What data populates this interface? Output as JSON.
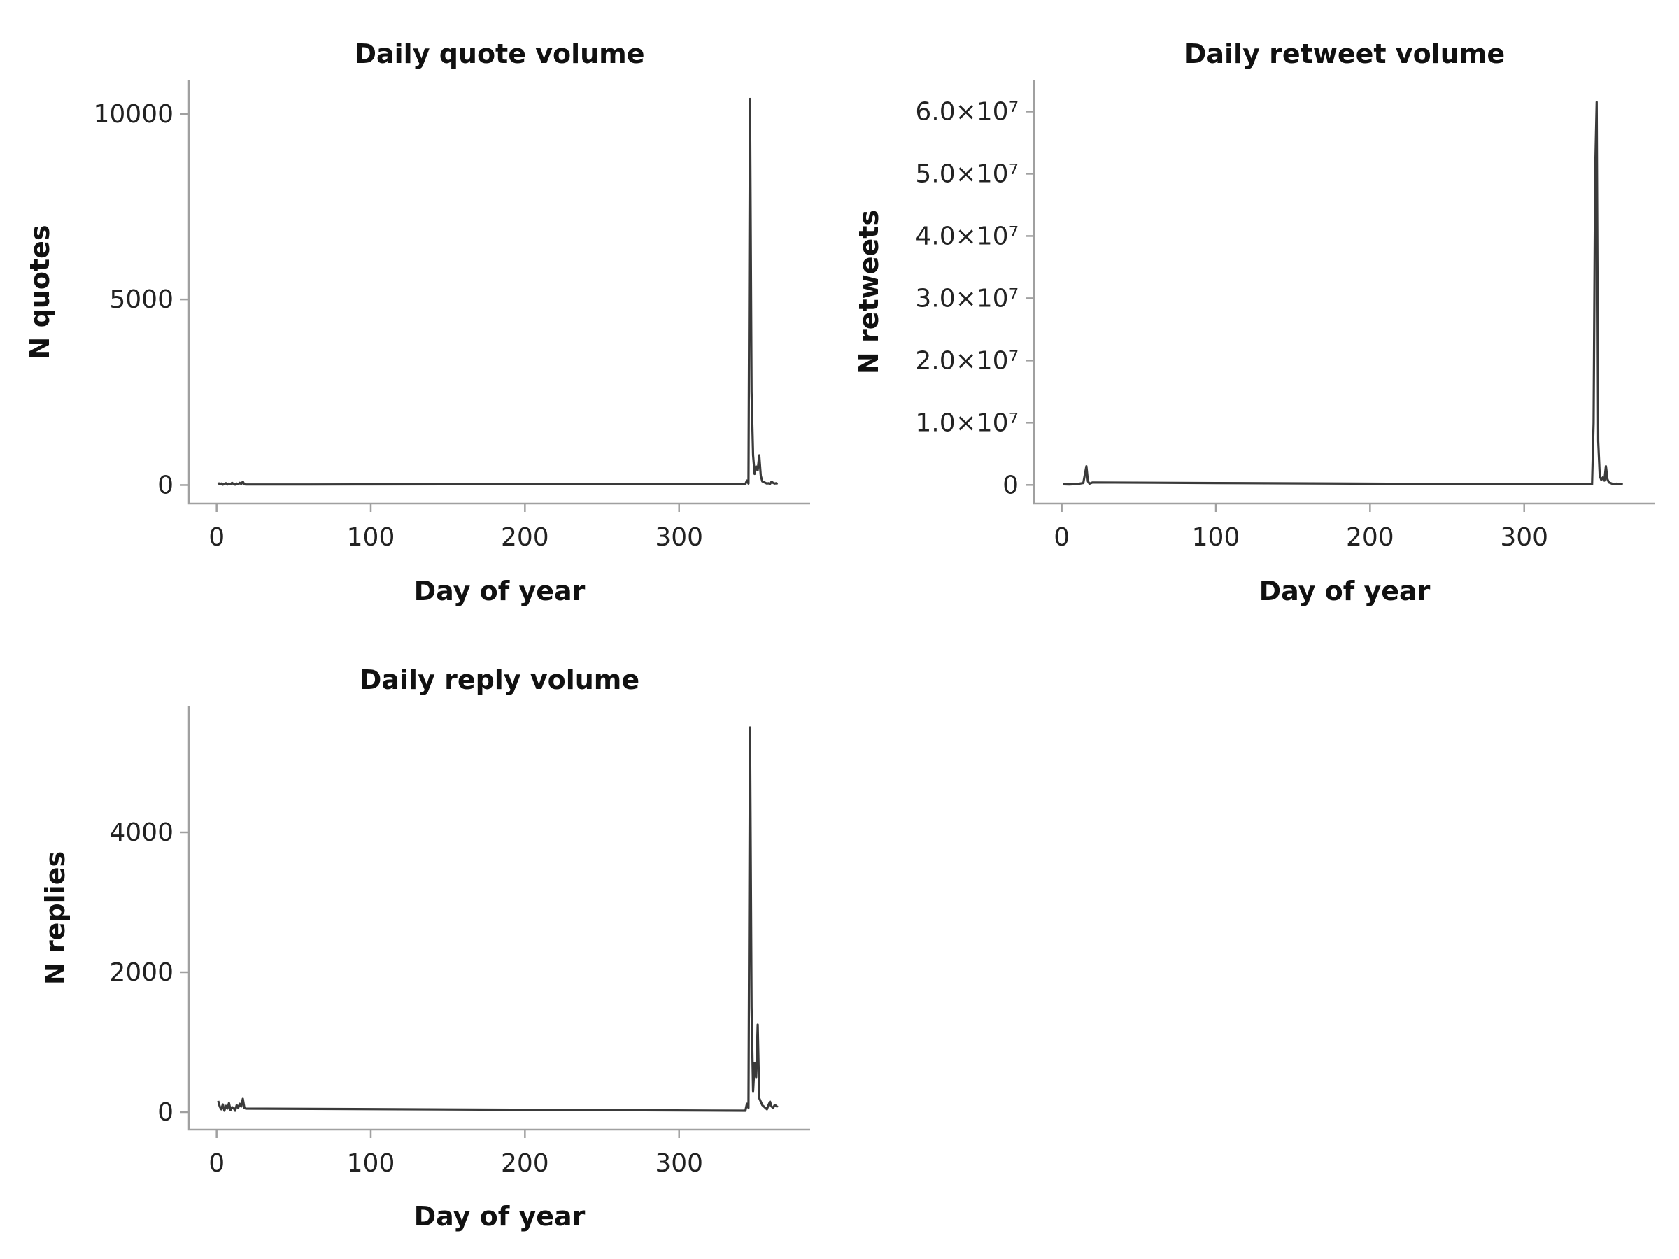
{
  "chart_data": [
    {
      "type": "line",
      "title": "Daily quote volume",
      "xlabel": "Day of year",
      "ylabel": "N quotes",
      "xlim": [
        -18,
        385
      ],
      "ylim": [
        -500,
        10900
      ],
      "x_ticks": [
        0,
        100,
        200,
        300
      ],
      "x_tick_labels": [
        "0",
        "100",
        "200",
        "300"
      ],
      "y_ticks": [
        0,
        5000,
        10000
      ],
      "y_tick_labels": [
        "0",
        "5000",
        "10000"
      ],
      "grid": false,
      "series": [
        {
          "color": "#3a3a3a",
          "x": [
            1,
            2,
            3,
            4,
            5,
            6,
            7,
            8,
            9,
            10,
            11,
            12,
            13,
            14,
            15,
            16,
            17,
            18,
            19,
            60,
            100,
            150,
            200,
            250,
            300,
            343,
            344,
            345,
            346,
            347,
            348,
            349,
            350,
            351,
            352,
            353,
            354,
            355,
            356,
            357,
            358,
            359,
            360,
            361,
            362,
            363,
            364
          ],
          "y": [
            60,
            20,
            40,
            10,
            30,
            50,
            15,
            40,
            20,
            60,
            30,
            10,
            40,
            20,
            60,
            30,
            90,
            20,
            15,
            15,
            18,
            20,
            20,
            22,
            25,
            30,
            120,
            40,
            10400,
            2500,
            800,
            300,
            500,
            400,
            800,
            250,
            100,
            80,
            60,
            40,
            50,
            30,
            90,
            60,
            40,
            50,
            30
          ]
        }
      ]
    },
    {
      "type": "line",
      "title": "Daily retweet volume",
      "xlabel": "Day of year",
      "ylabel": "N retweets",
      "xlim": [
        -18,
        385
      ],
      "ylim": [
        -3000000,
        65000000
      ],
      "x_ticks": [
        0,
        100,
        200,
        300
      ],
      "x_tick_labels": [
        "0",
        "100",
        "200",
        "300"
      ],
      "y_ticks": [
        0,
        10000000,
        20000000,
        30000000,
        40000000,
        50000000,
        60000000
      ],
      "y_tick_labels": [
        "0",
        "1.0×10⁷",
        "2.0×10⁷",
        "3.0×10⁷",
        "4.0×10⁷",
        "5.0×10⁷",
        "6.0×10⁷"
      ],
      "grid": false,
      "series": [
        {
          "color": "#3a3a3a",
          "x": [
            1,
            5,
            10,
            14,
            16,
            17,
            18,
            20,
            100,
            200,
            300,
            344,
            345,
            346,
            347,
            348,
            349,
            350,
            351,
            352,
            353,
            354,
            355,
            356,
            357,
            358,
            360,
            362,
            364
          ],
          "y": [
            100000,
            80000,
            150000,
            300000,
            3000000,
            600000,
            200000,
            400000,
            300000,
            200000,
            100000,
            100000,
            10000000,
            50000000,
            61500000,
            7000000,
            1500000,
            800000,
            1200000,
            700000,
            3000000,
            900000,
            400000,
            300000,
            200000,
            150000,
            200000,
            150000,
            100000
          ]
        }
      ]
    },
    {
      "type": "line",
      "title": "Daily reply volume",
      "xlabel": "Day of year",
      "ylabel": "N replies",
      "xlim": [
        -18,
        385
      ],
      "ylim": [
        -250,
        5800
      ],
      "x_ticks": [
        0,
        100,
        200,
        300
      ],
      "x_tick_labels": [
        "0",
        "100",
        "200",
        "300"
      ],
      "y_ticks": [
        0,
        2000,
        4000
      ],
      "y_tick_labels": [
        "0",
        "2000",
        "4000"
      ],
      "grid": false,
      "series": [
        {
          "color": "#3a3a3a",
          "x": [
            1,
            2,
            3,
            4,
            5,
            6,
            7,
            8,
            9,
            10,
            11,
            12,
            13,
            14,
            15,
            16,
            17,
            18,
            19,
            343,
            344,
            345,
            346,
            347,
            348,
            349,
            350,
            351,
            352,
            353,
            354,
            355,
            356,
            357,
            358,
            359,
            360,
            361,
            362,
            363,
            364
          ],
          "y": [
            160,
            80,
            40,
            110,
            20,
            90,
            50,
            130,
            30,
            70,
            60,
            20,
            100,
            60,
            120,
            80,
            190,
            60,
            50,
            20,
            120,
            60,
            5500,
            1500,
            300,
            700,
            500,
            1250,
            200,
            150,
            100,
            80,
            60,
            40,
            100,
            150,
            80,
            60,
            100,
            90,
            70
          ]
        }
      ]
    }
  ]
}
